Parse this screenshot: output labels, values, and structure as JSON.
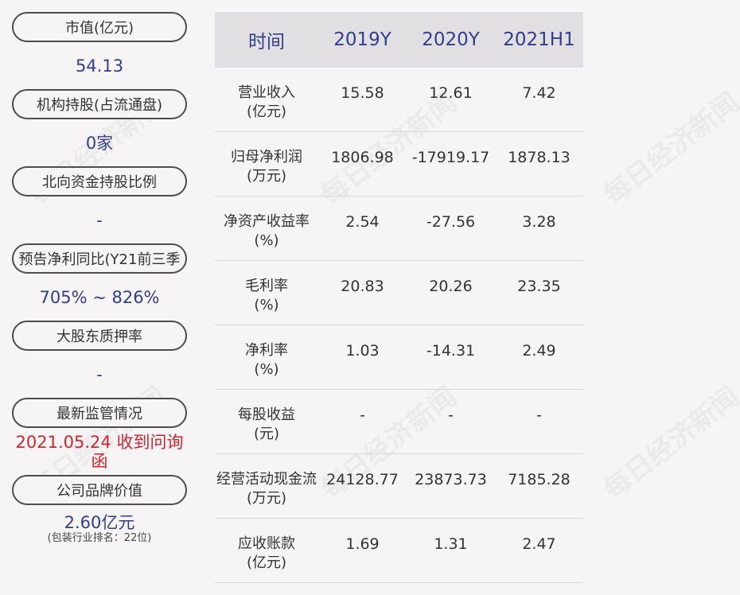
{
  "watermark": "每日经济新闻",
  "left_panel": [
    {
      "label": "市值(亿元)",
      "value": "54.13"
    },
    {
      "label": "机构持股(占流通盘)",
      "value": "0家"
    },
    {
      "label": "北向资金持股比例",
      "value": "-"
    },
    {
      "label": "预告净利同比(Y21前三季",
      "value": "705% ~ 826%"
    },
    {
      "label": "大股东质押率",
      "value": "-"
    },
    {
      "label": "最新监管情况",
      "value": "2021.05.24 收到问询函",
      "color": "#d7262a"
    },
    {
      "label": "公司品牌价值",
      "value": "2.60亿元",
      "note": "(包装行业排名：22位)"
    }
  ],
  "table": {
    "headers": [
      "时间",
      "2019Y",
      "2020Y",
      "2021H1"
    ],
    "rows": [
      {
        "label": "营业收入",
        "unit": "(亿元)",
        "values": [
          "15.58",
          "12.61",
          "7.42"
        ]
      },
      {
        "label": "归母净利润",
        "unit": "(万元)",
        "values": [
          "1806.98",
          "-17919.17",
          "1878.13"
        ]
      },
      {
        "label": "净资产收益率",
        "unit": "(%)",
        "values": [
          "2.54",
          "-27.56",
          "3.28"
        ]
      },
      {
        "label": "毛利率",
        "unit": "(%)",
        "values": [
          "20.83",
          "20.26",
          "23.35"
        ]
      },
      {
        "label": "净利率",
        "unit": "(%)",
        "values": [
          "1.03",
          "-14.31",
          "2.49"
        ]
      },
      {
        "label": "每股收益",
        "unit": "(元)",
        "values": [
          "-",
          "-",
          "-"
        ]
      },
      {
        "label": "经营活动现金流",
        "unit": "(万元)",
        "values": [
          "24128.77",
          "23873.73",
          "7185.28"
        ]
      },
      {
        "label": "应收账款",
        "unit": "(亿元)",
        "values": [
          "1.69",
          "1.31",
          "2.47"
        ]
      }
    ]
  }
}
